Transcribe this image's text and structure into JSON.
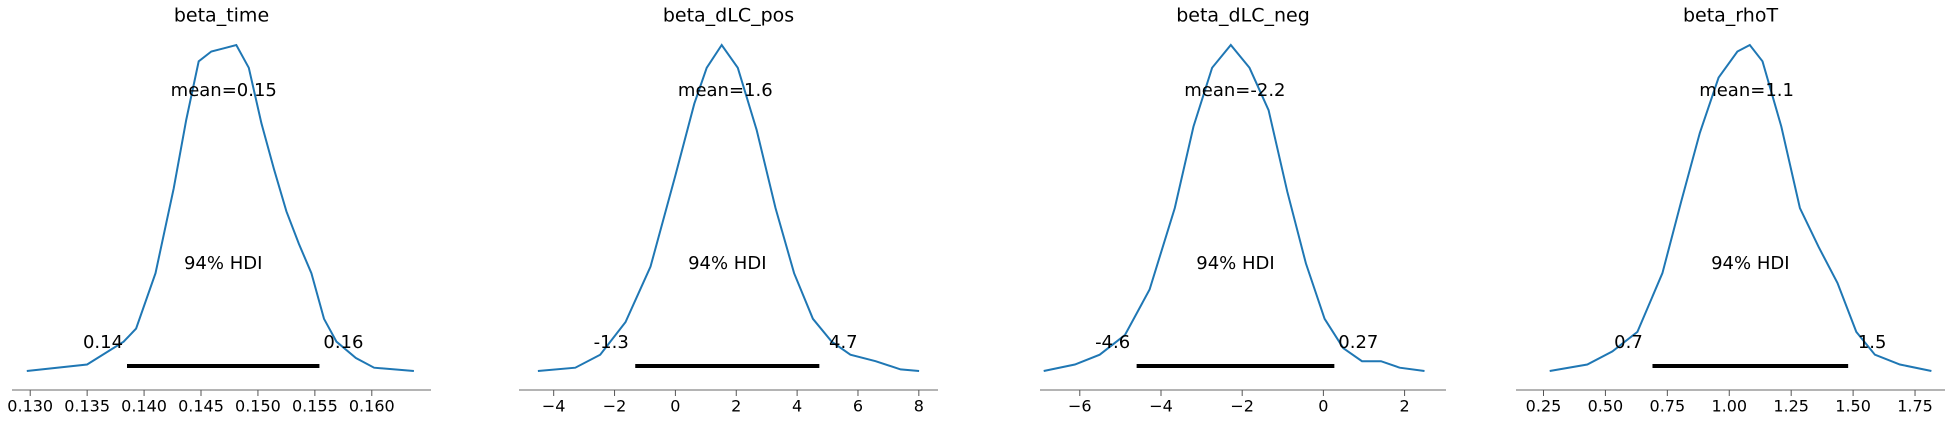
{
  "chart_data": [
    {
      "type": "density",
      "title": "beta_time",
      "color": "#1f77b4",
      "x": [
        0.1297,
        0.135,
        0.1382,
        0.1393,
        0.141,
        0.1426,
        0.1437,
        0.1448,
        0.1459,
        0.147,
        0.1481,
        0.1492,
        0.1503,
        0.1514,
        0.1525,
        0.1536,
        0.1547,
        0.1558,
        0.1569,
        0.1586,
        0.1602,
        0.1637
      ],
      "values": [
        0,
        0.02,
        0.09,
        0.13,
        0.3,
        0.56,
        0.77,
        0.95,
        0.98,
        0.99,
        1,
        0.93,
        0.76,
        0.62,
        0.49,
        0.39,
        0.3,
        0.16,
        0.09,
        0.04,
        0.01,
        0
      ],
      "xlim": [
        0.1284,
        0.1652
      ],
      "ylim": [
        0,
        1
      ],
      "xticks": [
        {
          "value": 0.13,
          "label": "0.130"
        },
        {
          "value": 0.135,
          "label": "0.135"
        },
        {
          "value": 0.14,
          "label": "0.140"
        },
        {
          "value": 0.145,
          "label": "0.145"
        },
        {
          "value": 0.15,
          "label": "0.150"
        },
        {
          "value": 0.155,
          "label": "0.155"
        },
        {
          "value": 0.16,
          "label": "0.160"
        }
      ],
      "mean": 0.147,
      "mean_label": "mean=0.15",
      "hdi_label": "94% HDI",
      "hdi": [
        0.1385,
        0.1554
      ],
      "hdi_labels": [
        "0.14",
        "0.16"
      ]
    },
    {
      "type": "density",
      "title": "beta_dLC_pos",
      "color": "#1f77b4",
      "x": [
        -4.52,
        -3.29,
        -2.47,
        -1.64,
        -0.82,
        0,
        0.62,
        1.03,
        1.52,
        2.05,
        2.67,
        3.29,
        3.9,
        4.52,
        5.14,
        5.75,
        6.58,
        7.4,
        8.01
      ],
      "values": [
        0,
        0.01,
        0.05,
        0.15,
        0.32,
        0.6,
        0.82,
        0.93,
        1,
        0.93,
        0.74,
        0.5,
        0.3,
        0.16,
        0.09,
        0.05,
        0.03,
        0.005,
        0
      ],
      "xlim": [
        -5.14,
        8.63
      ],
      "ylim": [
        0,
        1
      ],
      "xticks": [
        {
          "value": -4,
          "label": "−4"
        },
        {
          "value": -2,
          "label": "−2"
        },
        0,
        2,
        4,
        6,
        8
      ],
      "mean": 1.64,
      "mean_label": "mean=1.6",
      "hdi_label": "94% HDI",
      "hdi": [
        -1.32,
        4.73
      ],
      "hdi_labels": [
        "-1.3",
        "4.7"
      ]
    },
    {
      "type": "density",
      "title": "beta_dLC_neg",
      "color": "#1f77b4",
      "x": [
        -6.89,
        -6.12,
        -5.51,
        -4.89,
        -4.28,
        -3.66,
        -3.2,
        -2.74,
        -2.28,
        -1.82,
        -1.35,
        -0.89,
        -0.43,
        0.03,
        0.49,
        0.95,
        1.42,
        1.88,
        2.49
      ],
      "values": [
        0,
        0.02,
        0.05,
        0.11,
        0.25,
        0.5,
        0.75,
        0.93,
        1,
        0.93,
        0.8,
        0.55,
        0.33,
        0.16,
        0.07,
        0.03,
        0.03,
        0.01,
        0
      ],
      "xlim": [
        -6.98,
        3.02
      ],
      "ylim": [
        0,
        1
      ],
      "xticks": [
        {
          "value": -6,
          "label": "−6"
        },
        {
          "value": -4,
          "label": "−4"
        },
        {
          "value": -2,
          "label": "−2"
        },
        0,
        2
      ],
      "mean": -2.18,
      "mean_label": "mean=-2.2",
      "hdi_label": "94% HDI",
      "hdi": [
        -4.6,
        0.27
      ],
      "hdi_labels": [
        "-4.6",
        "0.27"
      ]
    },
    {
      "type": "density",
      "title": "beta_rhoT",
      "color": "#1f77b4",
      "x": [
        0.275,
        0.427,
        0.528,
        0.629,
        0.73,
        0.806,
        0.881,
        0.957,
        1.033,
        1.083,
        1.134,
        1.21,
        1.285,
        1.361,
        1.437,
        1.513,
        1.588,
        1.689,
        1.816
      ],
      "values": [
        0,
        0.02,
        0.06,
        0.12,
        0.3,
        0.52,
        0.73,
        0.9,
        0.98,
        1,
        0.95,
        0.75,
        0.5,
        0.38,
        0.27,
        0.12,
        0.05,
        0.02,
        0
      ],
      "xlim": [
        0.139,
        1.871
      ],
      "ylim": [
        0,
        1
      ],
      "xticks": [
        0.25,
        {
          "value": 0.5,
          "label": "0.50"
        },
        0.75,
        {
          "value": 1,
          "label": "1.00"
        },
        1.25,
        {
          "value": 1.5,
          "label": "1.50"
        },
        1.75
      ],
      "mean": 1.07,
      "mean_label": "mean=1.1",
      "hdi_label": "94% HDI",
      "hdi": [
        0.69,
        1.48
      ],
      "hdi_labels": [
        "0.7",
        "1.5"
      ]
    }
  ]
}
